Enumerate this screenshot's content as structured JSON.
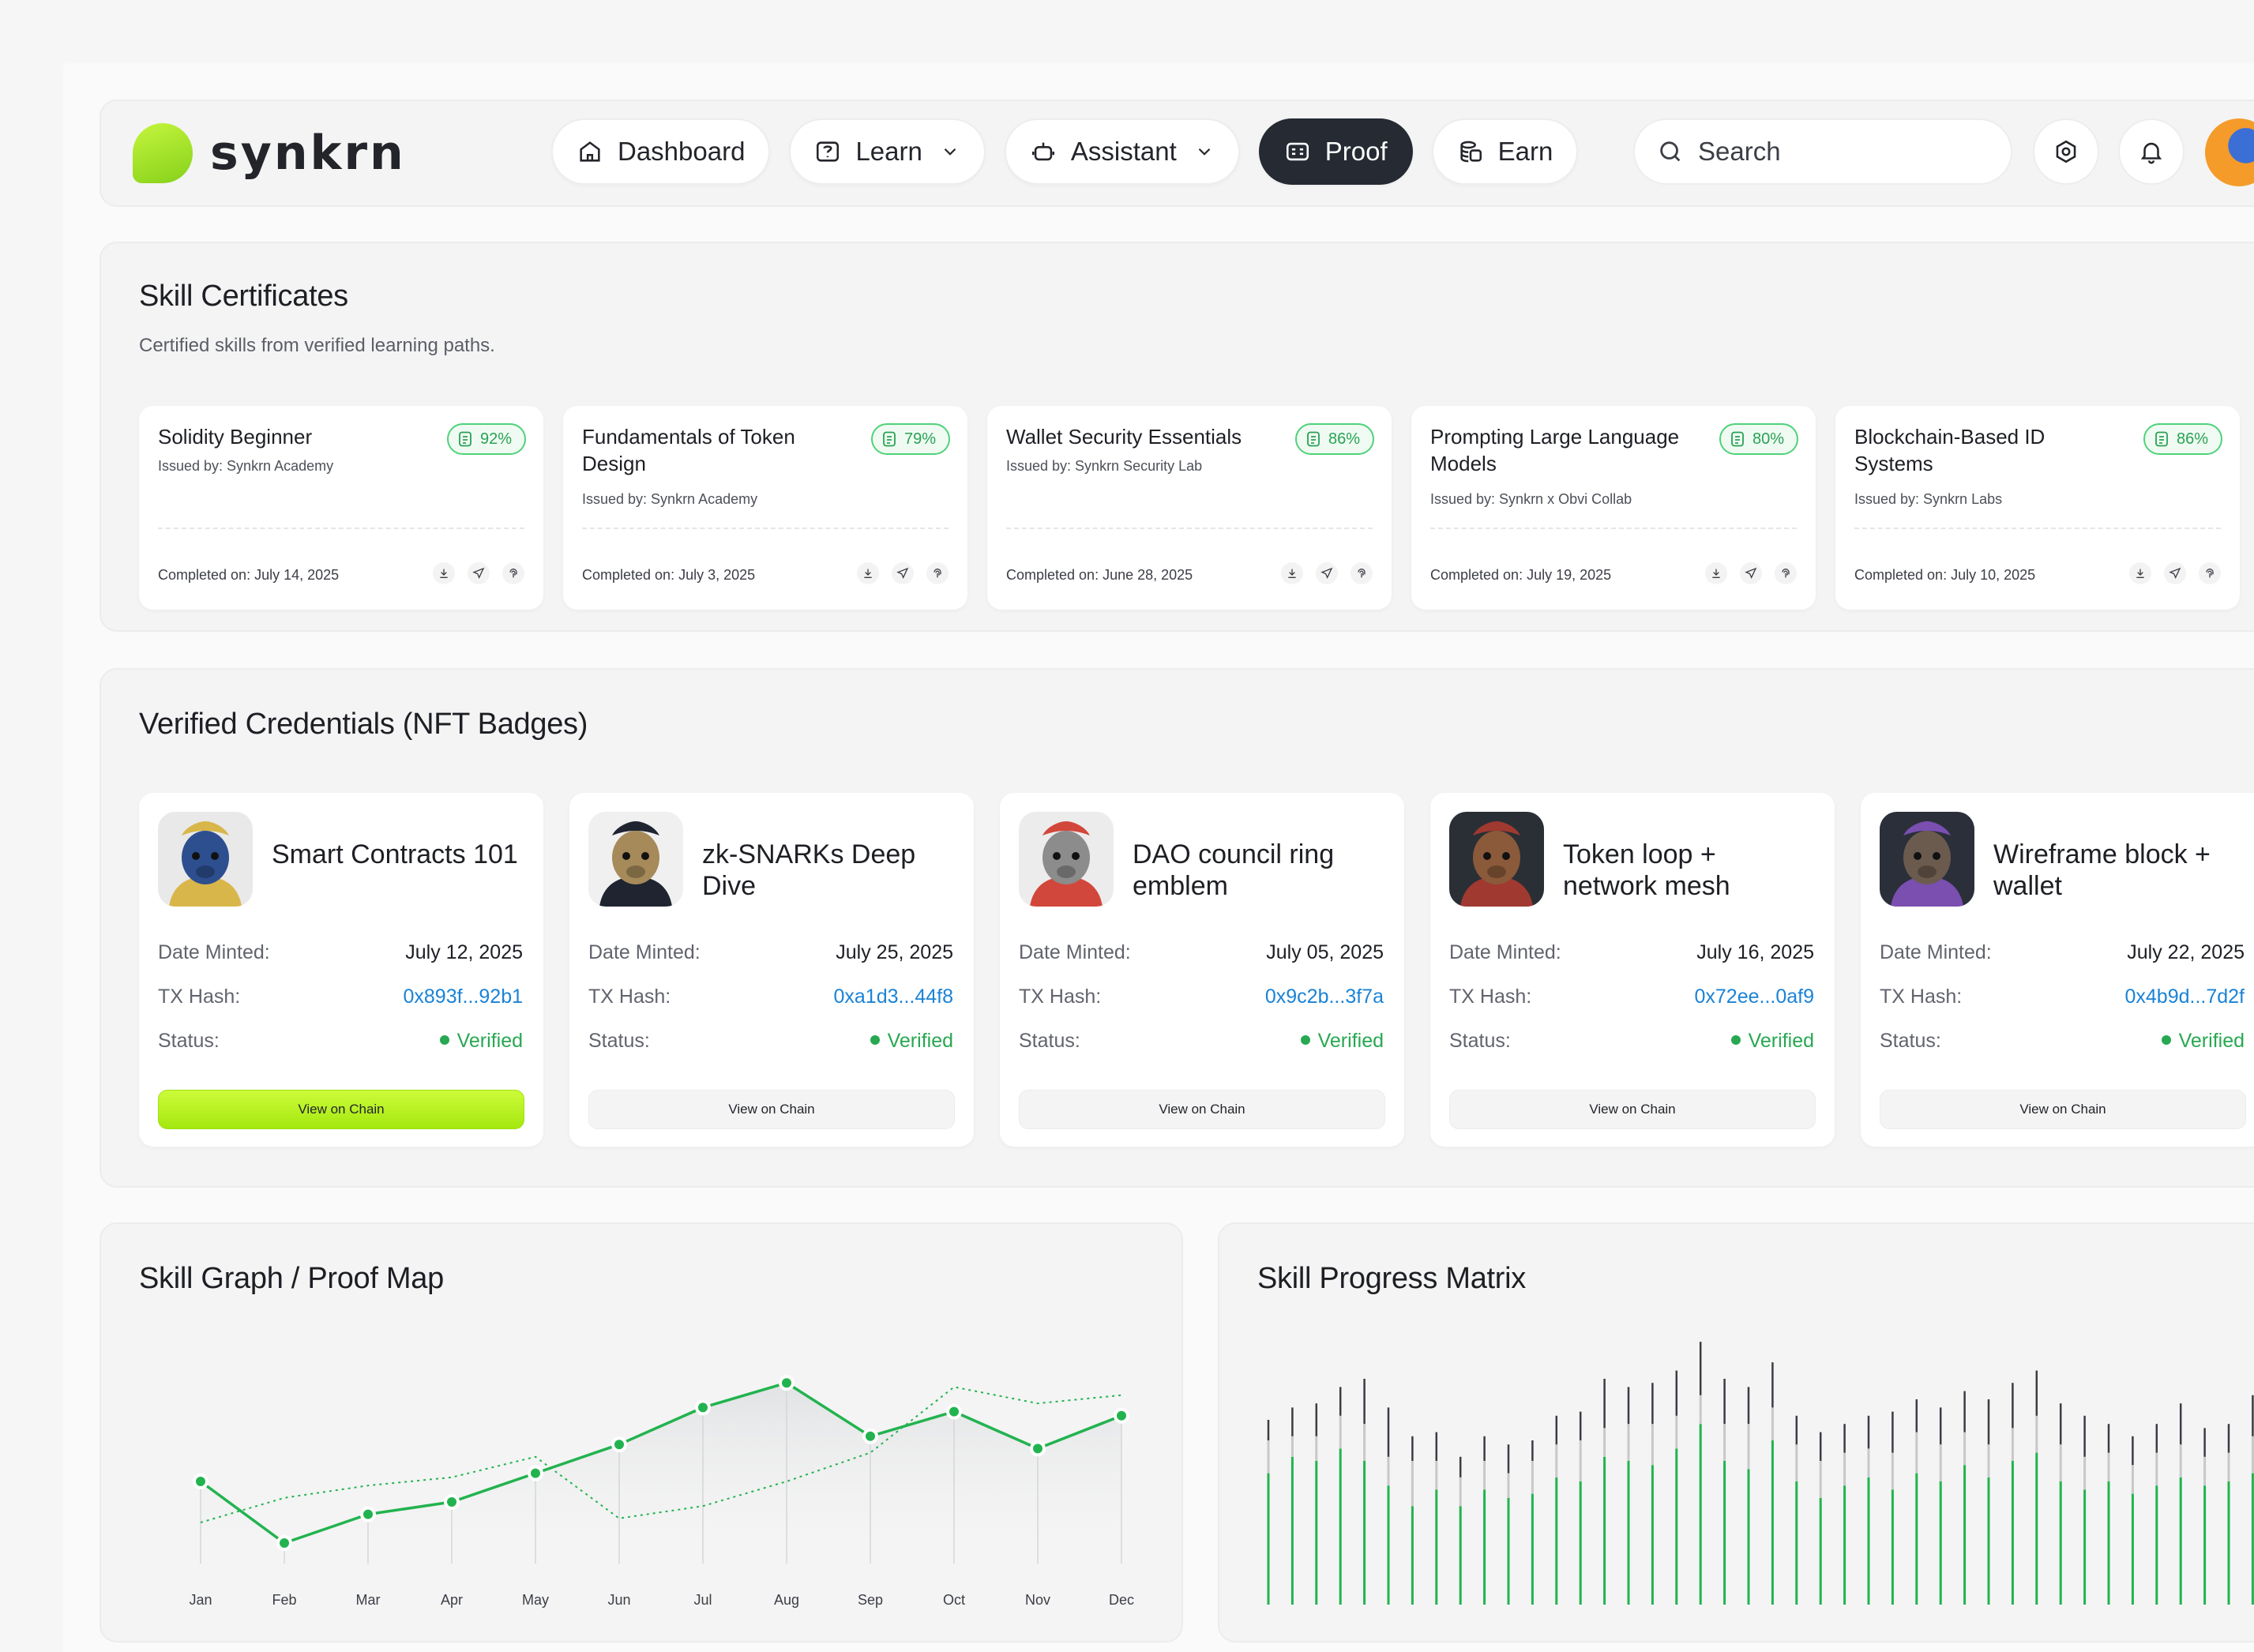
{
  "brand": {
    "name": "synkrn"
  },
  "nav": {
    "items": [
      {
        "label": "Dashboard",
        "icon": "home-icon"
      },
      {
        "label": "Learn",
        "icon": "brain-icon"
      },
      {
        "label": "Assistant",
        "icon": "robot-icon"
      },
      {
        "label": "Proof",
        "icon": "id-card-icon",
        "active": true
      },
      {
        "label": "Earn",
        "icon": "coins-icon"
      }
    ],
    "search_label": "Search"
  },
  "certificates": {
    "title": "Skill Certificates",
    "subtitle": "Certified skills from verified learning paths.",
    "items": [
      {
        "title": "Solidity Beginner",
        "issuer": "Issued by: Synkrn Academy",
        "score": "92%",
        "completed": "Completed on: July 14, 2025"
      },
      {
        "title": "Fundamentals of Token Design",
        "issuer": "Issued by: Synkrn Academy",
        "score": "79%",
        "completed": "Completed on: July 3, 2025"
      },
      {
        "title": "Wallet Security Essentials",
        "issuer": "Issued by: Synkrn Security Lab",
        "score": "86%",
        "completed": "Completed on: June 28, 2025"
      },
      {
        "title": "Prompting Large Language Models",
        "issuer": "Issued by: Synkrn x Obvi Collab",
        "score": "80%",
        "completed": "Completed on: July 19, 2025"
      },
      {
        "title": "Blockchain-Based ID Systems",
        "issuer": "Issued by: Synkrn Labs",
        "score": "86%",
        "completed": "Completed on: July 10, 2025"
      }
    ]
  },
  "credentials": {
    "title": "Verified Credentials (NFT Badges)",
    "labels": {
      "date": "Date Minted:",
      "hash": "TX Hash:",
      "status": "Status:",
      "button": "View on Chain"
    },
    "items": [
      {
        "title": "Smart Contracts 101",
        "date": "July 12, 2025",
        "hash": "0x893f...92b1",
        "status": "Verified",
        "art": {
          "bg": "#e9e9e9",
          "color": "#2d4f8f",
          "accent": "#d8b64a"
        }
      },
      {
        "title": "zk-SNARKs Deep Dive",
        "date": "July 25, 2025",
        "hash": "0xa1d3...44f8",
        "status": "Verified",
        "art": {
          "bg": "#f0f0f0",
          "color": "#a68a5a",
          "accent": "#1f2430"
        }
      },
      {
        "title": "DAO council ring emblem",
        "date": "July 05, 2025",
        "hash": "0x9c2b...3f7a",
        "status": "Verified",
        "art": {
          "bg": "#ececec",
          "color": "#8c8c8c",
          "accent": "#d2473b"
        }
      },
      {
        "title": "Token loop + network mesh",
        "date": "July 16, 2025",
        "hash": "0x72ee...0af9",
        "status": "Verified",
        "art": {
          "bg": "#2a2f36",
          "color": "#8a5a3a",
          "accent": "#a0392f"
        }
      },
      {
        "title": "Wireframe block + wallet",
        "date": "July 22, 2025",
        "hash": "0x4b9d...7d2f",
        "status": "Verified",
        "art": {
          "bg": "#2b2f3a",
          "color": "#6b5b4e",
          "accent": "#7a4fb0"
        }
      }
    ]
  },
  "skill_graph": {
    "title": "Skill Graph / Proof Map",
    "chart_data": {
      "type": "line",
      "categories": [
        "Jan",
        "Feb",
        "Mar",
        "Apr",
        "May",
        "Jun",
        "Jul",
        "Aug",
        "Sep",
        "Oct",
        "Nov",
        "Dec"
      ],
      "ylim": [
        0,
        100
      ],
      "grid": false,
      "series": [
        {
          "style": "solid",
          "color": "#22b34f",
          "values": [
            40,
            10,
            24,
            30,
            44,
            58,
            76,
            88,
            62,
            74,
            56,
            72
          ]
        },
        {
          "style": "dotted",
          "color": "#22b34f",
          "values": [
            20,
            32,
            38,
            42,
            52,
            22,
            28,
            40,
            54,
            86,
            78,
            82
          ]
        }
      ]
    }
  },
  "progress_matrix": {
    "title": "Skill Progress Matrix",
    "chart_data": {
      "type": "bar",
      "stacked": true,
      "colors": {
        "base": "#22b34f",
        "mid": "#c8c8c8",
        "top": "#3a3d43"
      },
      "values": [
        [
          64,
          16,
          10
        ],
        [
          72,
          10,
          14
        ],
        [
          70,
          12,
          16
        ],
        [
          76,
          16,
          14
        ],
        [
          70,
          18,
          22
        ],
        [
          58,
          14,
          24
        ],
        [
          48,
          22,
          12
        ],
        [
          56,
          14,
          14
        ],
        [
          48,
          14,
          10
        ],
        [
          56,
          14,
          12
        ],
        [
          52,
          12,
          14
        ],
        [
          54,
          16,
          10
        ],
        [
          62,
          16,
          14
        ],
        [
          60,
          20,
          14
        ],
        [
          72,
          14,
          24
        ],
        [
          70,
          18,
          18
        ],
        [
          68,
          20,
          20
        ],
        [
          76,
          16,
          22
        ],
        [
          88,
          14,
          26
        ],
        [
          70,
          18,
          22
        ],
        [
          66,
          22,
          18
        ],
        [
          80,
          16,
          22
        ],
        [
          60,
          18,
          14
        ],
        [
          52,
          18,
          14
        ],
        [
          58,
          16,
          14
        ],
        [
          62,
          14,
          16
        ],
        [
          56,
          18,
          20
        ],
        [
          64,
          20,
          16
        ],
        [
          60,
          18,
          18
        ],
        [
          68,
          16,
          20
        ],
        [
          62,
          16,
          22
        ],
        [
          70,
          16,
          22
        ],
        [
          74,
          18,
          22
        ],
        [
          60,
          18,
          20
        ],
        [
          56,
          16,
          20
        ],
        [
          60,
          14,
          14
        ],
        [
          54,
          14,
          14
        ],
        [
          58,
          16,
          14
        ],
        [
          62,
          16,
          20
        ],
        [
          58,
          14,
          14
        ],
        [
          60,
          14,
          14
        ],
        [
          64,
          18,
          20
        ]
      ]
    }
  }
}
